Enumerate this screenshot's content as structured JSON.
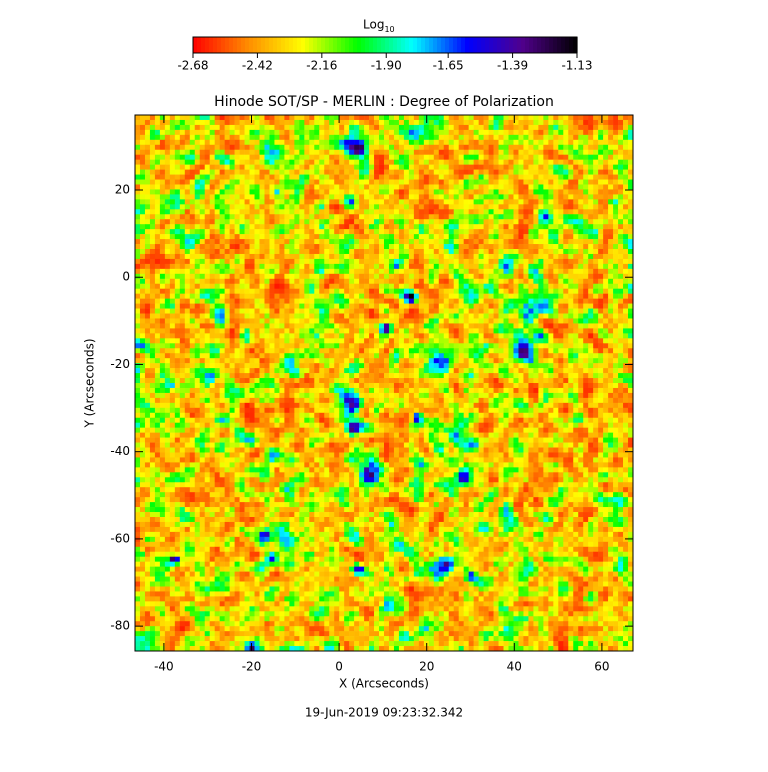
{
  "chart_data": {
    "type": "image",
    "title": "Hinode SOT/SP - MERLIN : Degree of Polarization",
    "xlabel": "X (Arcseconds)",
    "ylabel": "Y (Arcseconds)",
    "xlim": [
      -46.6,
      67.1
    ],
    "ylim": [
      -85.7,
      37.2
    ],
    "xticks": [
      -40,
      -20,
      0,
      20,
      40,
      60
    ],
    "yticks": [
      20,
      0,
      -20,
      -40,
      -60,
      -80
    ],
    "colorbar": {
      "label": "Log",
      "label_sub": "10",
      "clim": [
        -2.68,
        -1.13
      ],
      "ticks": [
        -2.68,
        -2.42,
        -2.16,
        {
          "value": -1.9,
          "label": "-1.90"
        },
        -1.65,
        -1.39,
        -1.13
      ],
      "colormap": [
        "#ff0000",
        "#ff8c00",
        "#ffff00",
        "#00ff00",
        "#00ffff",
        "#0000ff",
        "#50008c",
        "#000000"
      ]
    },
    "timestamp": "19-Jun-2019 09:23:32.342"
  }
}
